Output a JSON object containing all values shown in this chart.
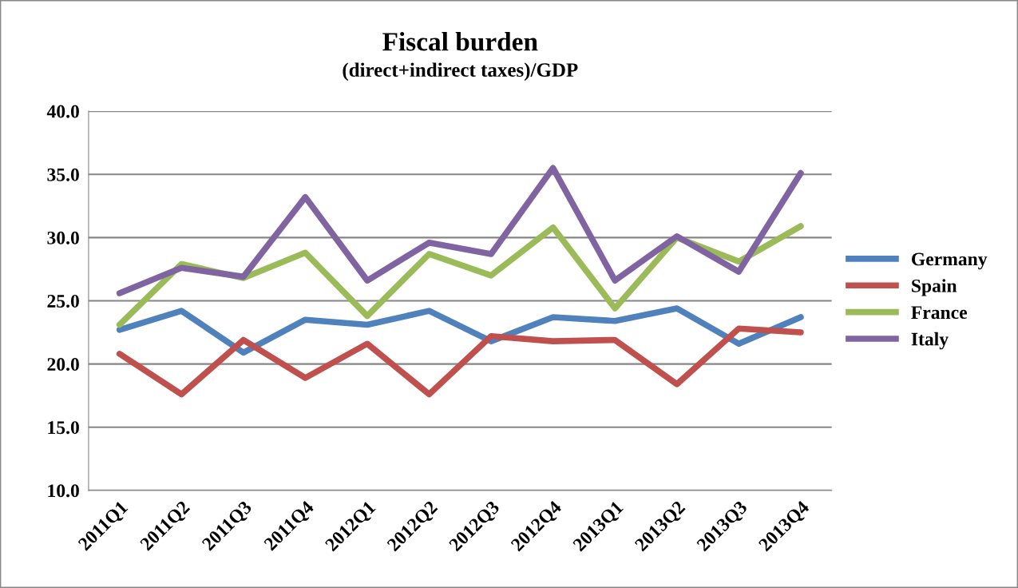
{
  "chart_data": {
    "type": "line",
    "title": "Fiscal burden",
    "subtitle": "(direct+indirect taxes)/GDP",
    "categories": [
      "2011Q1",
      "2011Q2",
      "2011Q3",
      "2011Q4",
      "2012Q1",
      "2012Q2",
      "2012Q3",
      "2012Q4",
      "2013Q1",
      "2013Q2",
      "2013Q3",
      "2013Q4"
    ],
    "series": [
      {
        "name": "Germany",
        "color": "#4f81bd",
        "values": [
          22.7,
          24.2,
          20.9,
          23.5,
          23.1,
          24.2,
          21.8,
          23.7,
          23.4,
          24.4,
          21.6,
          23.7
        ]
      },
      {
        "name": "Spain",
        "color": "#c0504d",
        "values": [
          20.8,
          17.6,
          21.9,
          18.9,
          21.6,
          17.6,
          22.2,
          21.8,
          21.9,
          18.4,
          22.8,
          22.5
        ]
      },
      {
        "name": "France",
        "color": "#9bbb59",
        "values": [
          23.1,
          27.9,
          26.8,
          28.8,
          23.8,
          28.7,
          27.0,
          30.8,
          24.4,
          30.0,
          28.1,
          30.9
        ]
      },
      {
        "name": "Italy",
        "color": "#8064a2",
        "values": [
          25.6,
          27.6,
          26.9,
          33.2,
          26.6,
          29.6,
          28.7,
          35.5,
          26.6,
          30.1,
          27.3,
          35.1
        ]
      }
    ],
    "ylim": [
      10,
      40
    ],
    "yticks": [
      {
        "value": 10,
        "label": "10.0"
      },
      {
        "value": 15,
        "label": "15.0"
      },
      {
        "value": 20,
        "label": "20.0"
      },
      {
        "value": 25,
        "label": "25.0"
      },
      {
        "value": 30,
        "label": "30.0"
      },
      {
        "value": 35,
        "label": "35.0"
      },
      {
        "value": 40,
        "label": "40.0"
      }
    ],
    "grid": "y",
    "legend": "right",
    "marker": "none",
    "line_style": "solid"
  }
}
